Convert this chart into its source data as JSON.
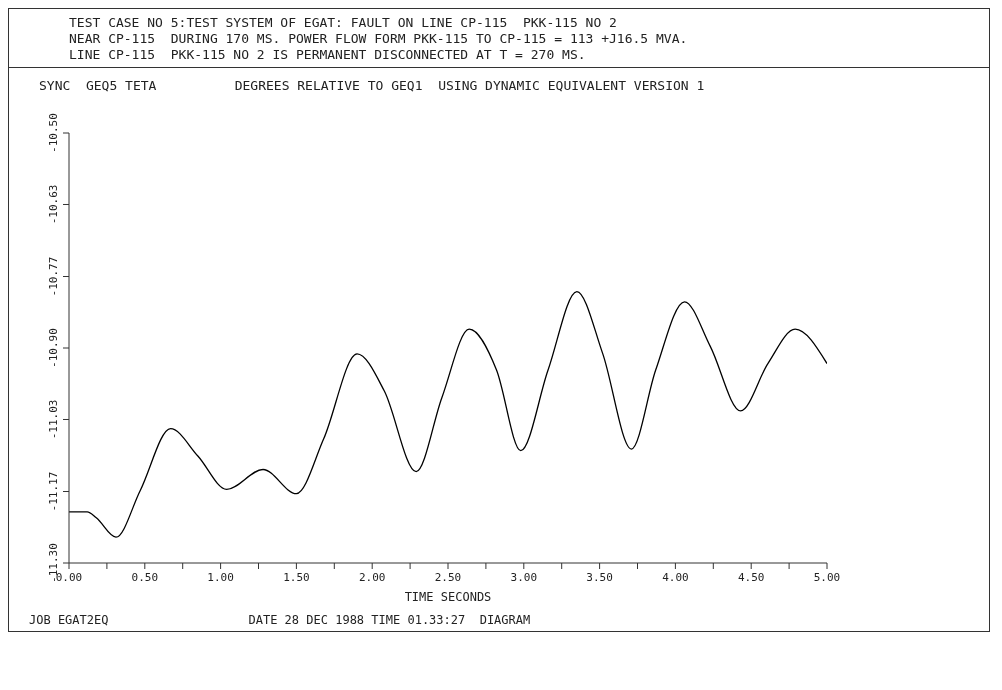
{
  "chart_data": {
    "type": "line",
    "title": "TEST CASE NO 5:TEST SYSTEM OF EGAT: FAULT ON LINE CP-115  PKK-115 NO 2\nNEAR CP-115  DURING 170 MS. POWER FLOW FORM PKK-115 TO CP-115 = 113 +J16.5 MVA.\nLINE CP-115  PKK-115 NO 2 IS PERMANENT DISCONNECTED AT T = 270 MS.",
    "subtitle": "SYNC  GEQ5 TETA          DEGREES RELATIVE TO GEQ1  USING DYNAMIC EQUIVALENT VERSION 1",
    "xlabel": "TIME SECONDS",
    "annotations": [
      "JOB EGAT2EQ",
      "DATE 28 DEC 1988 TIME 01.33:27  DIAGRAM"
    ],
    "x": [
      0,
      0.12,
      0.18,
      0.31,
      0.47,
      0.67,
      0.85,
      1.04,
      1.28,
      1.5,
      1.68,
      1.9,
      2.08,
      2.29,
      2.46,
      2.64,
      2.82,
      2.98,
      3.16,
      3.35,
      3.52,
      3.71,
      3.87,
      4.06,
      4.23,
      4.43,
      4.61,
      4.79,
      5.0
    ],
    "series": [
      {
        "color": "#000000",
        "values": [
          -11.205,
          -11.205,
          -11.216,
          -11.252,
          -11.165,
          -11.05,
          -11.101,
          -11.163,
          -11.126,
          -11.171,
          -11.069,
          -10.911,
          -10.98,
          -11.13,
          -10.992,
          -10.865,
          -10.941,
          -11.091,
          -10.941,
          -10.795,
          -10.91,
          -11.088,
          -10.941,
          -10.814,
          -10.897,
          -11.017,
          -10.929,
          -10.865,
          -10.929
        ]
      }
    ],
    "xlim": [
      0,
      5
    ],
    "xticks": [
      {
        "value": 0,
        "label": "0.00"
      },
      {
        "value": 0.25,
        "label": null
      },
      {
        "value": 0.5,
        "label": "0.50"
      },
      {
        "value": 0.75,
        "label": null
      },
      {
        "value": 1,
        "label": "1.00"
      },
      {
        "value": 1.25,
        "label": null
      },
      {
        "value": 1.5,
        "label": "1.50"
      },
      {
        "value": 1.75,
        "label": null
      },
      {
        "value": 2,
        "label": "2.00"
      },
      {
        "value": 2.25,
        "label": null
      },
      {
        "value": 2.5,
        "label": "2.50"
      },
      {
        "value": 2.75,
        "label": null
      },
      {
        "value": 3,
        "label": "3.00"
      },
      {
        "value": 3.25,
        "label": null
      },
      {
        "value": 3.5,
        "label": "3.50"
      },
      {
        "value": 3.75,
        "label": null
      },
      {
        "value": 4,
        "label": "4.00"
      },
      {
        "value": 4.25,
        "label": null
      },
      {
        "value": 4.5,
        "label": "4.50"
      },
      {
        "value": 4.75,
        "label": null
      },
      {
        "value": 5,
        "label": "5.00"
      }
    ],
    "ylim": [
      -11.3,
      -10.5
    ],
    "yticks": [
      {
        "value": -10.5,
        "label": "-10.50"
      },
      {
        "value": -10.633,
        "label": "-10.63"
      },
      {
        "value": -10.767,
        "label": "-10.77"
      },
      {
        "value": -10.9,
        "label": "-10.90"
      },
      {
        "value": -11.033,
        "label": "-11.03"
      },
      {
        "value": -11.167,
        "label": "-11.17"
      },
      {
        "value": -11.3,
        "label": "-11.30"
      }
    ],
    "grid": false,
    "legend": false,
    "marker": "none",
    "line_style": "solid"
  }
}
